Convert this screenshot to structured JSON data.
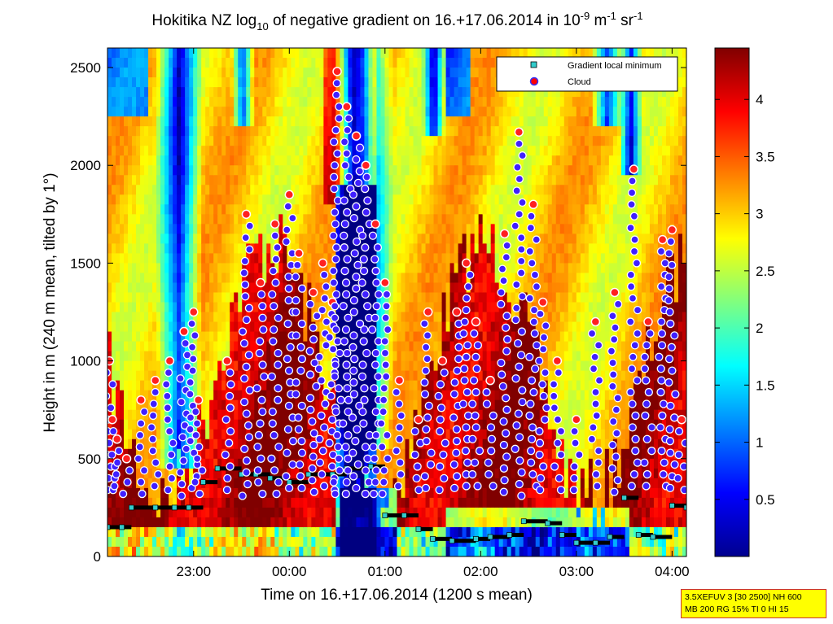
{
  "chart_data": {
    "type": "heatmap",
    "title": "Hokitika NZ log",
    "title_sub": "10",
    "title_mid": " of negative gradient on 16.+17.06.2014 in 10",
    "title_exp1": "-9",
    "title_mid2": " m",
    "title_exp2": "-1",
    "title_mid3": " sr",
    "title_exp3": "-1",
    "xlabel": "Time on 16.+17.06.2014 (1200 s mean)",
    "ylabel": "Height in m (240 m mean, tilted by 1°)",
    "x_ticks": [
      "23:00",
      "00:00",
      "01:00",
      "02:00",
      "03:00",
      "04:00"
    ],
    "x_tick_hours": [
      23,
      24,
      25,
      26,
      27,
      28
    ],
    "xlim_hours": [
      22.1,
      28.15
    ],
    "ylim": [
      0,
      2600
    ],
    "y_ticks": [
      0,
      500,
      1000,
      1500,
      2000,
      2500
    ],
    "colorbar": {
      "range": [
        0,
        4.45
      ],
      "ticks": [
        0.5,
        1,
        1.5,
        2,
        2.5,
        3,
        3.5,
        4
      ],
      "tick_labels": [
        "0.5",
        "1",
        "1.5",
        "2",
        "2.5",
        "3",
        "3.5",
        "4"
      ],
      "colormap": "jet"
    },
    "legend": {
      "position": "top-right",
      "entries": [
        {
          "label": "Gradient local minimum",
          "marker": "square",
          "color": "#33cccc"
        },
        {
          "label": "Cloud",
          "marker": "circle",
          "color": "#ff0000"
        }
      ]
    },
    "gradient_minimum_series": [
      {
        "t": 22.1,
        "h": 150
      },
      {
        "t": 22.25,
        "h": 150
      },
      {
        "t": 22.35,
        "h": 250
      },
      {
        "t": 22.6,
        "h": 250
      },
      {
        "t": 22.8,
        "h": 250
      },
      {
        "t": 22.95,
        "h": 250
      },
      {
        "t": 23.1,
        "h": 380
      },
      {
        "t": 23.25,
        "h": 450
      },
      {
        "t": 23.5,
        "h": 420
      },
      {
        "t": 23.65,
        "h": 420
      },
      {
        "t": 23.8,
        "h": 400
      },
      {
        "t": 24.0,
        "h": 380
      },
      {
        "t": 24.2,
        "h": 420
      },
      {
        "t": 24.45,
        "h": 420
      },
      {
        "t": 24.6,
        "h": 450
      },
      {
        "t": 24.85,
        "h": 460
      },
      {
        "t": 25.0,
        "h": 210
      },
      {
        "t": 25.2,
        "h": 210
      },
      {
        "t": 25.35,
        "h": 140
      },
      {
        "t": 25.5,
        "h": 90
      },
      {
        "t": 25.7,
        "h": 80
      },
      {
        "t": 25.95,
        "h": 90
      },
      {
        "t": 26.1,
        "h": 100
      },
      {
        "t": 26.3,
        "h": 110
      },
      {
        "t": 26.45,
        "h": 180
      },
      {
        "t": 26.7,
        "h": 170
      },
      {
        "t": 26.85,
        "h": 110
      },
      {
        "t": 27.0,
        "h": 70
      },
      {
        "t": 27.2,
        "h": 70
      },
      {
        "t": 27.35,
        "h": 100
      },
      {
        "t": 27.5,
        "h": 300
      },
      {
        "t": 27.65,
        "h": 110
      },
      {
        "t": 27.8,
        "h": 100
      },
      {
        "t": 28.0,
        "h": 260
      },
      {
        "t": 28.15,
        "h": 250
      }
    ],
    "cloud_series": [
      {
        "t": 22.12,
        "h": 1000
      },
      {
        "t": 22.15,
        "h": 700
      },
      {
        "t": 22.2,
        "h": 600
      },
      {
        "t": 22.3,
        "h": 500
      },
      {
        "t": 22.45,
        "h": 800
      },
      {
        "t": 22.6,
        "h": 900
      },
      {
        "t": 22.75,
        "h": 1000
      },
      {
        "t": 22.9,
        "h": 1150
      },
      {
        "t": 23.0,
        "h": 1250
      },
      {
        "t": 23.05,
        "h": 800
      },
      {
        "t": 23.35,
        "h": 1000
      },
      {
        "t": 23.55,
        "h": 1750
      },
      {
        "t": 23.7,
        "h": 1400
      },
      {
        "t": 23.85,
        "h": 1700
      },
      {
        "t": 24.0,
        "h": 1850
      },
      {
        "t": 24.1,
        "h": 1550
      },
      {
        "t": 24.25,
        "h": 1350
      },
      {
        "t": 24.35,
        "h": 1500
      },
      {
        "t": 24.45,
        "h": 1300
      },
      {
        "t": 24.5,
        "h": 2480
      },
      {
        "t": 24.6,
        "h": 2300
      },
      {
        "t": 24.7,
        "h": 2150
      },
      {
        "t": 24.8,
        "h": 2000
      },
      {
        "t": 24.9,
        "h": 1700
      },
      {
        "t": 25.0,
        "h": 1400
      },
      {
        "t": 25.15,
        "h": 900
      },
      {
        "t": 25.35,
        "h": 700
      },
      {
        "t": 25.45,
        "h": 1250
      },
      {
        "t": 25.6,
        "h": 1000
      },
      {
        "t": 25.75,
        "h": 1250
      },
      {
        "t": 25.85,
        "h": 1500
      },
      {
        "t": 25.95,
        "h": 1200
      },
      {
        "t": 26.1,
        "h": 900
      },
      {
        "t": 26.25,
        "h": 1650
      },
      {
        "t": 26.4,
        "h": 2170
      },
      {
        "t": 26.55,
        "h": 1800
      },
      {
        "t": 26.65,
        "h": 1300
      },
      {
        "t": 26.8,
        "h": 1000
      },
      {
        "t": 27.0,
        "h": 700
      },
      {
        "t": 27.2,
        "h": 1200
      },
      {
        "t": 27.4,
        "h": 1350
      },
      {
        "t": 27.6,
        "h": 1980
      },
      {
        "t": 27.75,
        "h": 1200
      },
      {
        "t": 27.9,
        "h": 1620
      },
      {
        "t": 28.0,
        "h": 1670
      },
      {
        "t": 28.1,
        "h": 700
      }
    ]
  },
  "info_box": {
    "line1": "3.5XEFUV 3 [30 2500] NH 600",
    "line2": "MB 200 RG 15% TI 0 HI 15"
  }
}
